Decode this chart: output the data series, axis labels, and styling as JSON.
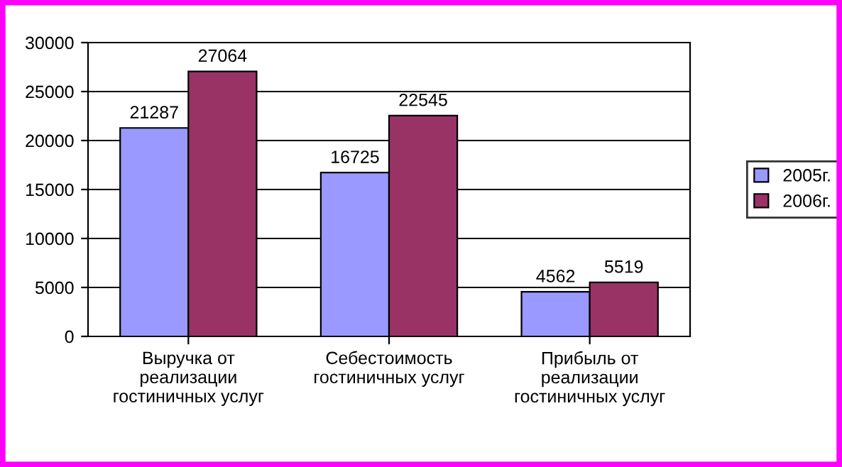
{
  "chart_data": {
    "type": "bar",
    "categories": [
      "Выручка от\nреализации\nгостиничных услуг",
      "Себестоимость\nгостиничных услуг",
      "Прибыль от\nреализации\nгостиничных услуг"
    ],
    "series": [
      {
        "name": "2005г.",
        "color": "#9999ff",
        "values": [
          21287,
          16725,
          4562
        ]
      },
      {
        "name": "2006г.",
        "color": "#993366",
        "values": [
          27064,
          22545,
          5519
        ]
      }
    ],
    "ylim": [
      0,
      30000
    ],
    "yticks": [
      0,
      5000,
      10000,
      15000,
      20000,
      25000,
      30000
    ],
    "grid": "y",
    "legend": "right",
    "data_labels": true
  }
}
